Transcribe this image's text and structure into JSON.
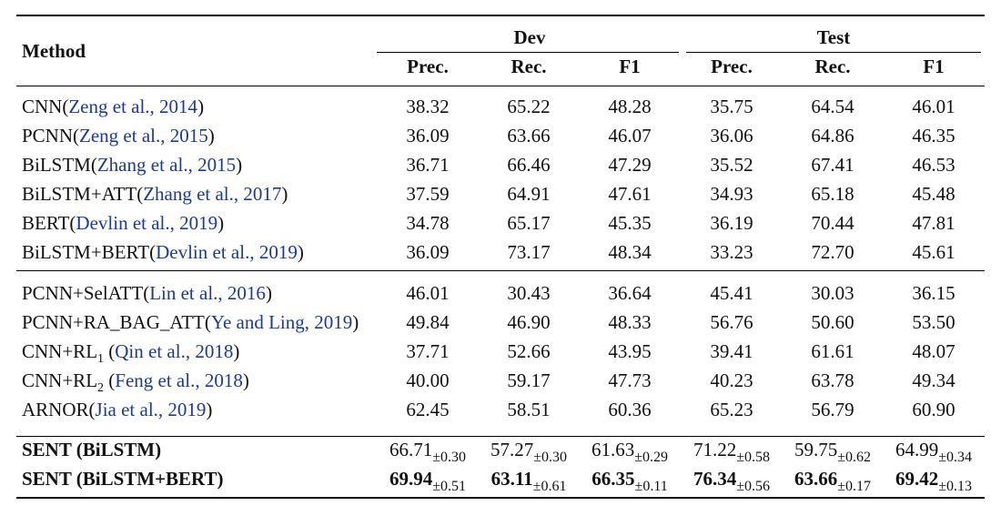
{
  "table": {
    "header": {
      "method": "Method",
      "groups": [
        "Dev",
        "Test"
      ],
      "metrics": [
        "Prec.",
        "Rec.",
        "F1",
        "Prec.",
        "Rec.",
        "F1"
      ]
    },
    "section1": [
      {
        "name": "CNN",
        "cite": "Zeng et al., 2014",
        "values": [
          "38.32",
          "65.22",
          "48.28",
          "35.75",
          "64.54",
          "46.01"
        ]
      },
      {
        "name": "PCNN",
        "cite": "Zeng et al., 2015",
        "values": [
          "36.09",
          "63.66",
          "46.07",
          "36.06",
          "64.86",
          "46.35"
        ]
      },
      {
        "name": "BiLSTM",
        "cite": "Zhang et al., 2015",
        "values": [
          "36.71",
          "66.46",
          "47.29",
          "35.52",
          "67.41",
          "46.53"
        ]
      },
      {
        "name": "BiLSTM+ATT",
        "cite": "Zhang et al., 2017",
        "values": [
          "37.59",
          "64.91",
          "47.61",
          "34.93",
          "65.18",
          "45.48"
        ]
      },
      {
        "name": "BERT",
        "cite": "Devlin et al., 2019",
        "values": [
          "34.78",
          "65.17",
          "45.35",
          "36.19",
          "70.44",
          "47.81"
        ]
      },
      {
        "name": "BiLSTM+BERT",
        "cite": "Devlin et al., 2019",
        "values": [
          "36.09",
          "73.17",
          "48.34",
          "33.23",
          "72.70",
          "45.61"
        ]
      }
    ],
    "section2": [
      {
        "name": "PCNN+SelATT",
        "sub": "",
        "cite": "Lin et al., 2016",
        "values": [
          "46.01",
          "30.43",
          "36.64",
          "45.41",
          "30.03",
          "36.15"
        ]
      },
      {
        "name": "PCNN+RA_BAG_ATT",
        "sub": "",
        "cite": "Ye and Ling, 2019",
        "values": [
          "49.84",
          "46.90",
          "48.33",
          "56.76",
          "50.60",
          "53.50"
        ]
      },
      {
        "name": "CNN+RL",
        "sub": "1",
        "cite": "Qin et al., 2018",
        "values": [
          "37.71",
          "52.66",
          "43.95",
          "39.41",
          "61.61",
          "48.07"
        ]
      },
      {
        "name": "CNN+RL",
        "sub": "2",
        "cite": "Feng et al., 2018",
        "values": [
          "40.00",
          "59.17",
          "47.73",
          "40.23",
          "63.78",
          "49.34"
        ]
      },
      {
        "name": "ARNOR",
        "sub": "",
        "cite": "Jia et al., 2019",
        "values": [
          "62.45",
          "58.51",
          "60.36",
          "65.23",
          "56.79",
          "60.90"
        ]
      }
    ],
    "section3": [
      {
        "name": "SENT (BiLSTM)",
        "bold_values": false,
        "values": [
          "66.71",
          "57.27",
          "61.63",
          "71.22",
          "59.75",
          "64.99"
        ],
        "stds": [
          "±0.30",
          "±0.30",
          "±0.29",
          "±0.58",
          "±0.62",
          "±0.34"
        ]
      },
      {
        "name": "SENT (BiLSTM+BERT)",
        "bold_values": true,
        "values": [
          "69.94",
          "63.11",
          "66.35",
          "76.34",
          "63.66",
          "69.42"
        ],
        "stds": [
          "±0.51",
          "±0.61",
          "±0.11",
          "±0.56",
          "±0.17",
          "±0.13"
        ]
      }
    ]
  }
}
